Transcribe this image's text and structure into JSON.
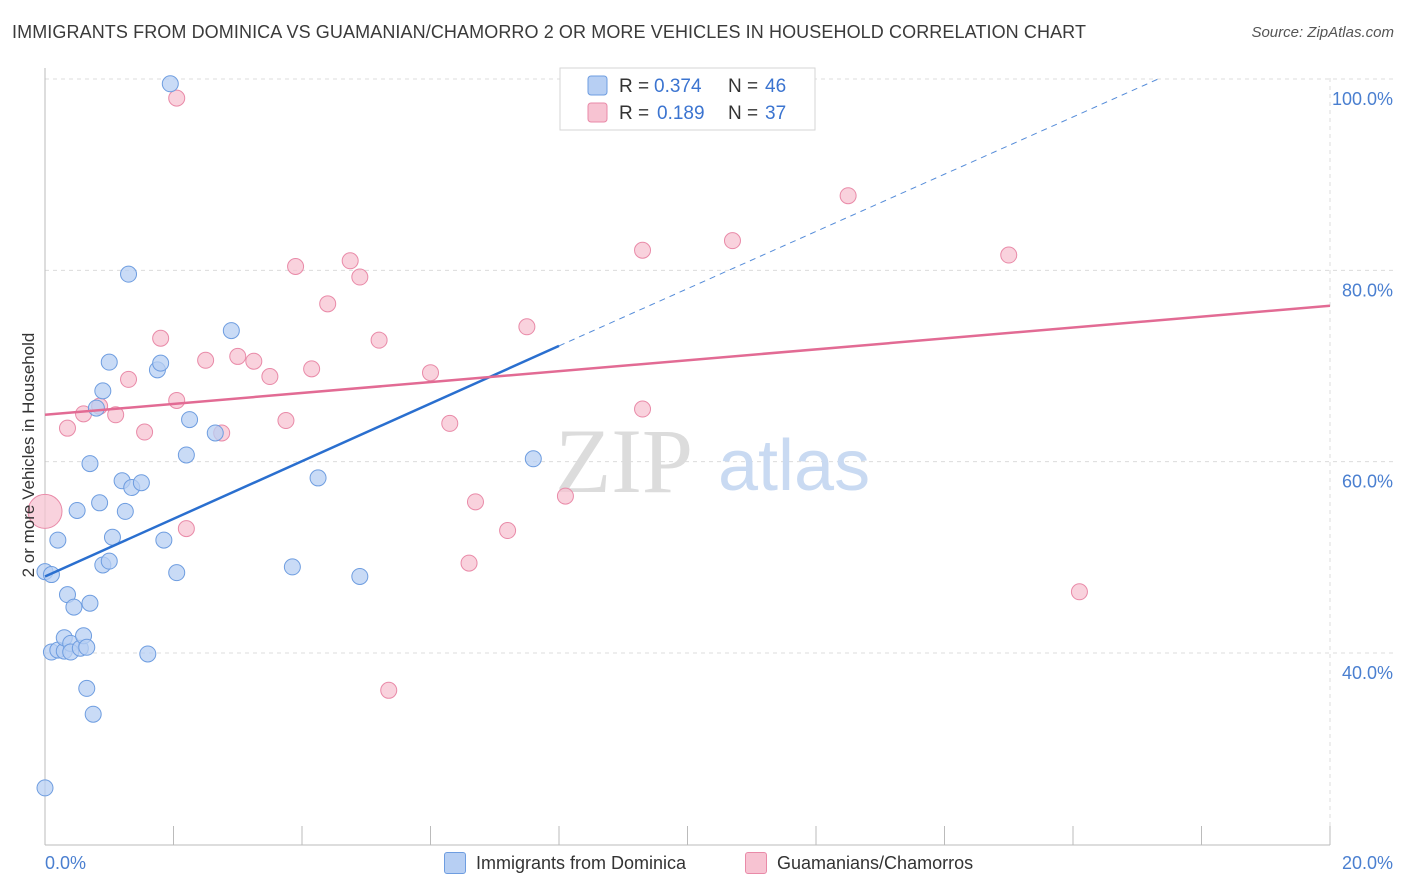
{
  "title": "IMMIGRANTS FROM DOMINICA VS GUAMANIAN/CHAMORRO 2 OR MORE VEHICLES IN HOUSEHOLD CORRELATION CHART",
  "source": "Source: ZipAtlas.com",
  "watermark": {
    "zip": "ZIP",
    "atlas": "atlas"
  },
  "colors": {
    "blue_fill": "#b7cff3",
    "blue_stroke": "#6e9de0",
    "blue_line": "#2a6fcf",
    "pink_fill": "#f7c3d2",
    "pink_stroke": "#e98aa8",
    "pink_line": "#e26b94",
    "tick_color": "#4a7fd0"
  },
  "legend": {
    "r_label": "R =",
    "n_label": "N =",
    "series1": {
      "r": "0.374",
      "n": "46"
    },
    "series2": {
      "r": "0.189",
      "n": "37"
    }
  },
  "chart_data": {
    "type": "scatter",
    "title": "IMMIGRANTS FROM DOMINICA VS GUAMANIAN/CHAMORRO 2 OR MORE VEHICLES IN HOUSEHOLD CORRELATION CHART",
    "xlabel": "",
    "ylabel": "2 or more Vehicles in Household",
    "xlim": [
      0,
      20
    ],
    "ylim": [
      20,
      102
    ],
    "x_tick_labels": [
      "0.0%",
      "20.0%"
    ],
    "y_ticks": [
      40,
      60,
      80,
      100
    ],
    "y_tick_labels": [
      "40.0%",
      "60.0%",
      "80.0%",
      "100.0%"
    ],
    "series": [
      {
        "name": "Immigrants from Dominica",
        "points": [
          [
            0.0,
            48.5
          ],
          [
            0.1,
            48.2
          ],
          [
            0.1,
            40.1
          ],
          [
            0.2,
            51.8
          ],
          [
            0.2,
            40.3
          ],
          [
            0.3,
            40.2
          ],
          [
            0.3,
            41.6
          ],
          [
            0.35,
            46.1
          ],
          [
            0.4,
            41.0
          ],
          [
            0.4,
            40.1
          ],
          [
            0.45,
            44.8
          ],
          [
            0.5,
            54.9
          ],
          [
            0.55,
            40.5
          ],
          [
            0.6,
            41.8
          ],
          [
            0.65,
            36.3
          ],
          [
            0.65,
            40.6
          ],
          [
            0.7,
            59.8
          ],
          [
            0.7,
            45.2
          ],
          [
            0.75,
            33.6
          ],
          [
            0.8,
            65.6
          ],
          [
            0.85,
            55.7
          ],
          [
            0.9,
            67.4
          ],
          [
            0.9,
            49.2
          ],
          [
            1.0,
            70.4
          ],
          [
            1.0,
            49.6
          ],
          [
            1.05,
            52.1
          ],
          [
            1.2,
            58.0
          ],
          [
            1.25,
            54.8
          ],
          [
            1.3,
            79.6
          ],
          [
            1.35,
            57.3
          ],
          [
            1.5,
            57.8
          ],
          [
            1.6,
            39.9
          ],
          [
            1.75,
            69.6
          ],
          [
            1.8,
            70.3
          ],
          [
            1.85,
            51.8
          ],
          [
            2.05,
            48.4
          ],
          [
            2.2,
            60.7
          ],
          [
            2.25,
            64.4
          ],
          [
            2.65,
            63.0
          ],
          [
            2.9,
            73.7
          ],
          [
            3.85,
            49.0
          ],
          [
            4.25,
            58.3
          ],
          [
            4.9,
            48.0
          ],
          [
            7.6,
            60.3
          ],
          [
            0.0,
            25.9
          ],
          [
            1.95,
            99.5
          ]
        ],
        "trend": {
          "x": [
            0.0,
            8.0
          ],
          "y": [
            48.0,
            72.1
          ],
          "dashed_extension": {
            "x": [
              8.0,
              20.0
            ],
            "y": [
              72.1,
              108.0
            ]
          }
        }
      },
      {
        "name": "Guamanians/Chamorros",
        "points": [
          [
            0.0,
            54.8
          ],
          [
            0.35,
            63.5
          ],
          [
            0.6,
            65.0
          ],
          [
            0.85,
            65.8
          ],
          [
            1.1,
            64.9
          ],
          [
            1.3,
            68.6
          ],
          [
            1.55,
            63.1
          ],
          [
            1.8,
            72.9
          ],
          [
            2.05,
            66.4
          ],
          [
            2.2,
            53.0
          ],
          [
            2.5,
            70.6
          ],
          [
            2.75,
            63.0
          ],
          [
            3.0,
            71.0
          ],
          [
            3.25,
            70.5
          ],
          [
            3.5,
            68.9
          ],
          [
            3.75,
            64.3
          ],
          [
            3.9,
            80.4
          ],
          [
            4.15,
            69.7
          ],
          [
            4.4,
            76.5
          ],
          [
            4.75,
            81.0
          ],
          [
            4.9,
            79.3
          ],
          [
            5.2,
            72.7
          ],
          [
            5.35,
            36.1
          ],
          [
            6.0,
            69.3
          ],
          [
            6.3,
            64.0
          ],
          [
            6.6,
            49.4
          ],
          [
            6.7,
            55.8
          ],
          [
            7.2,
            52.8
          ],
          [
            7.5,
            74.1
          ],
          [
            8.1,
            56.4
          ],
          [
            9.3,
            65.5
          ],
          [
            9.3,
            82.1
          ],
          [
            10.7,
            83.1
          ],
          [
            12.5,
            87.8
          ],
          [
            15.0,
            81.6
          ],
          [
            16.1,
            46.4
          ],
          [
            2.05,
            98.0
          ]
        ],
        "trend": {
          "x": [
            0.0,
            20.0
          ],
          "y": [
            64.9,
            76.3
          ]
        }
      }
    ]
  },
  "bottom_legend": {
    "series1_label": "Immigrants from Dominica",
    "series2_label": "Guamanians/Chamorros"
  }
}
